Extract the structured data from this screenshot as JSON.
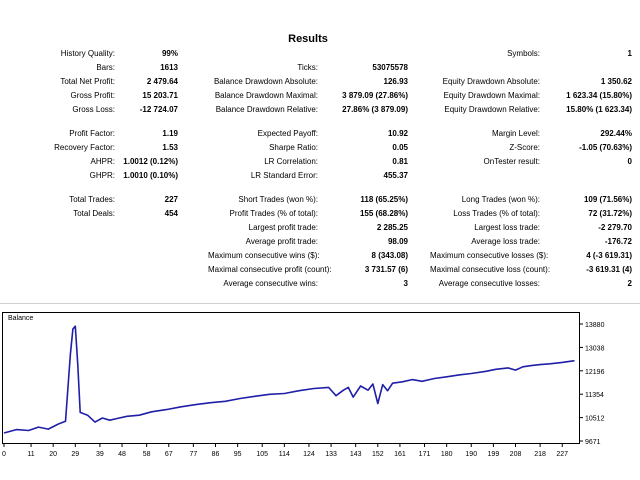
{
  "title": "Results",
  "rows": [
    {
      "cells": [
        {
          "label": "History Quality:",
          "value": "99%"
        },
        null,
        {
          "label": "Symbols:",
          "value": "1"
        }
      ]
    },
    {
      "cells": [
        {
          "label": "Bars:",
          "value": "1613"
        },
        {
          "label": "Ticks:",
          "value": "53075578"
        },
        null
      ]
    },
    {
      "cells": [
        {
          "label": "Total Net Profit:",
          "value": "2 479.64"
        },
        {
          "label": "Balance Drawdown Absolute:",
          "value": "126.93"
        },
        {
          "label": "Equity Drawdown Absolute:",
          "value": "1 350.62"
        }
      ]
    },
    {
      "cells": [
        {
          "label": "Gross Profit:",
          "value": "15 203.71"
        },
        {
          "label": "Balance Drawdown Maximal:",
          "value": "3 879.09 (27.86%)"
        },
        {
          "label": "Equity Drawdown Maximal:",
          "value": "1 623.34 (15.80%)"
        }
      ]
    },
    {
      "cells": [
        {
          "label": "Gross Loss:",
          "value": "-12 724.07"
        },
        {
          "label": "Balance Drawdown Relative:",
          "value": "27.86% (3 879.09)"
        },
        {
          "label": "Equity Drawdown Relative:",
          "value": "15.80% (1 623.34)"
        }
      ]
    },
    {
      "gap": true
    },
    {
      "cells": [
        {
          "label": "Profit Factor:",
          "value": "1.19"
        },
        {
          "label": "Expected Payoff:",
          "value": "10.92"
        },
        {
          "label": "Margin Level:",
          "value": "292.44%"
        }
      ]
    },
    {
      "cells": [
        {
          "label": "Recovery Factor:",
          "value": "1.53"
        },
        {
          "label": "Sharpe Ratio:",
          "value": "0.05"
        },
        {
          "label": "Z-Score:",
          "value": "-1.05 (70.63%)"
        }
      ]
    },
    {
      "cells": [
        {
          "label": "AHPR:",
          "value": "1.0012 (0.12%)"
        },
        {
          "label": "LR Correlation:",
          "value": "0.81"
        },
        {
          "label": "OnTester result:",
          "value": "0"
        }
      ]
    },
    {
      "cells": [
        {
          "label": "GHPR:",
          "value": "1.0010 (0.10%)"
        },
        {
          "label": "LR Standard Error:",
          "value": "455.37"
        },
        null
      ]
    },
    {
      "gap": true
    },
    {
      "cells": [
        {
          "label": "Total Trades:",
          "value": "227"
        },
        {
          "label": "Short Trades (won %):",
          "value": "118 (65.25%)"
        },
        {
          "label": "Long Trades (won %):",
          "value": "109 (71.56%)"
        }
      ]
    },
    {
      "cells": [
        {
          "label": "Total Deals:",
          "value": "454"
        },
        {
          "label": "Profit Trades (% of total):",
          "value": "155 (68.28%)"
        },
        {
          "label": "Loss Trades (% of total):",
          "value": "72 (31.72%)"
        }
      ]
    },
    {
      "cells": [
        null,
        {
          "label": "Largest profit trade:",
          "value": "2 285.25"
        },
        {
          "label": "Largest loss trade:",
          "value": "-2 279.70"
        }
      ]
    },
    {
      "cells": [
        null,
        {
          "label": "Average profit trade:",
          "value": "98.09"
        },
        {
          "label": "Average loss trade:",
          "value": "-176.72"
        }
      ]
    },
    {
      "cells": [
        null,
        {
          "label": "Maximum consecutive wins ($):",
          "value": "8 (343.08)"
        },
        {
          "label": "Maximum consecutive losses ($):",
          "value": "4 (-3 619.31)"
        }
      ]
    },
    {
      "cells": [
        null,
        {
          "label": "Maximal consecutive profit (count):",
          "value": "3 731.57 (6)"
        },
        {
          "label": "Maximal consecutive loss (count):",
          "value": "-3 619.31 (4)"
        }
      ]
    },
    {
      "cells": [
        null,
        {
          "label": "Average consecutive wins:",
          "value": "3"
        },
        {
          "label": "Average consecutive losses:",
          "value": "2"
        }
      ]
    }
  ],
  "chart_data": {
    "type": "line",
    "title": "Balance",
    "x_ticks": [
      "0",
      "11",
      "20",
      "29",
      "39",
      "48",
      "58",
      "67",
      "77",
      "86",
      "95",
      "105",
      "114",
      "124",
      "133",
      "143",
      "152",
      "161",
      "171",
      "180",
      "190",
      "199",
      "208",
      "218",
      "227"
    ],
    "y_ticks": [
      "13880",
      "13038",
      "12196",
      "11354",
      "10512",
      "9671"
    ],
    "ylim": [
      9671,
      13880
    ],
    "xlim": [
      0,
      233
    ],
    "series": [
      {
        "color": "#1f1fa8",
        "x": [
          0,
          5,
          10,
          14,
          18,
          22,
          25,
          27,
          28,
          29,
          30,
          31,
          34,
          37,
          40,
          43,
          46,
          50,
          55,
          60,
          66,
          72,
          78,
          84,
          90,
          96,
          102,
          108,
          114,
          120,
          126,
          132,
          135,
          138,
          140,
          142,
          145,
          148,
          150,
          152,
          154,
          156,
          158,
          162,
          166,
          170,
          175,
          180,
          185,
          190,
          196,
          200,
          205,
          208,
          211,
          214,
          218,
          222,
          227,
          232
        ],
        "y": [
          9960,
          10080,
          10050,
          10170,
          10100,
          10280,
          10380,
          12800,
          13700,
          13800,
          12400,
          10700,
          10600,
          10350,
          10500,
          10420,
          10480,
          10560,
          10600,
          10720,
          10800,
          10900,
          10980,
          11050,
          11100,
          11200,
          11280,
          11350,
          11380,
          11480,
          11560,
          11600,
          11300,
          11500,
          11600,
          11250,
          11650,
          11500,
          11720,
          11020,
          11700,
          11480,
          11750,
          11800,
          11880,
          11820,
          11920,
          11980,
          12050,
          12100,
          12180,
          12250,
          12300,
          12220,
          12340,
          12380,
          12420,
          12450,
          12500,
          12560
        ]
      }
    ]
  }
}
